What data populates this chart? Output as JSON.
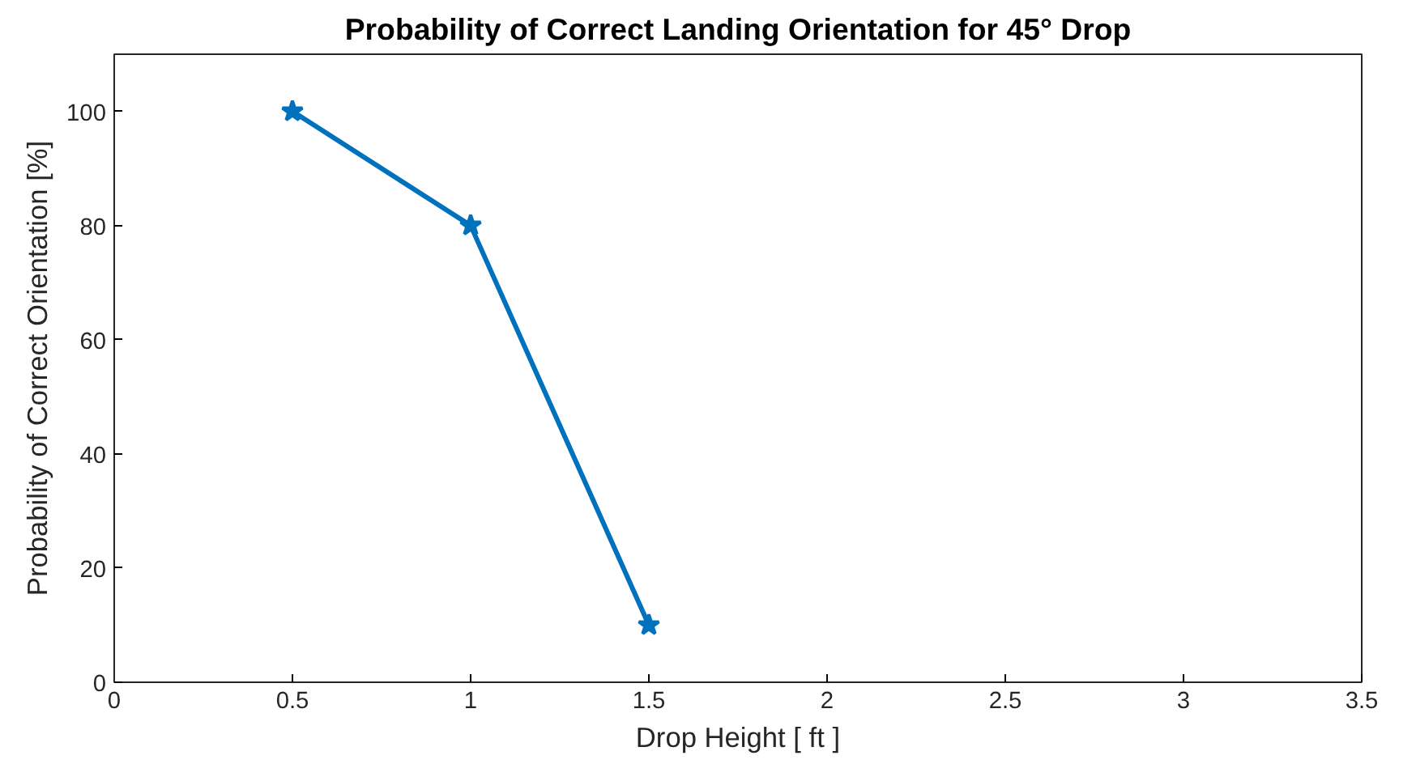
{
  "chart_data": {
    "type": "line",
    "title": "Probability of Correct Landing Orientation for 45° Drop",
    "xlabel": "Drop Height [ ft ]",
    "ylabel": "Probability of Correct Orientation [%]",
    "x": [
      0.5,
      1,
      1.5
    ],
    "series": [
      {
        "color": "#0072bd",
        "values": [
          100,
          80,
          10
        ]
      }
    ],
    "xlim": [
      0,
      3.5
    ],
    "xticks": [
      0,
      0.5,
      1,
      1.5,
      2,
      2.5,
      3,
      3.5
    ],
    "ylim": [
      0,
      110
    ],
    "yticks": [
      0,
      20,
      40,
      60,
      80,
      100
    ],
    "grid": false,
    "marker": "star",
    "line_style": "solid"
  }
}
